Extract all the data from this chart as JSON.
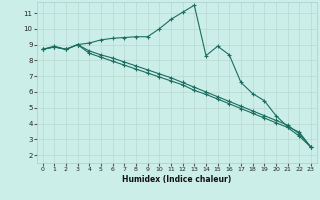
{
  "xlabel": "Humidex (Indice chaleur)",
  "background_color": "#cceee8",
  "grid_color": "#b8d8d0",
  "line_color": "#1a6e60",
  "xlim": [
    -0.5,
    23.5
  ],
  "ylim": [
    1.5,
    11.7
  ],
  "xticks": [
    0,
    1,
    2,
    3,
    4,
    5,
    6,
    7,
    8,
    9,
    10,
    11,
    12,
    13,
    14,
    15,
    16,
    17,
    18,
    19,
    20,
    21,
    22,
    23
  ],
  "yticks": [
    2,
    3,
    4,
    5,
    6,
    7,
    8,
    9,
    10,
    11
  ],
  "series1_x": [
    0,
    1,
    2,
    3,
    4,
    5,
    6,
    7,
    8,
    9,
    10,
    11,
    12,
    13,
    14,
    15,
    16,
    17,
    18,
    19,
    20,
    21,
    22,
    23
  ],
  "series1_y": [
    8.7,
    8.9,
    8.7,
    9.0,
    9.1,
    9.3,
    9.4,
    9.45,
    9.5,
    9.5,
    10.0,
    10.6,
    11.05,
    11.5,
    8.3,
    8.9,
    8.35,
    6.6,
    5.9,
    5.45,
    4.5,
    3.8,
    3.45,
    2.5
  ],
  "series2_x": [
    0,
    1,
    2,
    3,
    4,
    5,
    6,
    7,
    8,
    9,
    10,
    11,
    12,
    13,
    14,
    15,
    16,
    17,
    18,
    19,
    20,
    21,
    22,
    23
  ],
  "series2_y": [
    8.7,
    8.85,
    8.7,
    9.0,
    8.45,
    8.2,
    7.95,
    7.7,
    7.45,
    7.2,
    6.95,
    6.7,
    6.45,
    6.1,
    5.85,
    5.55,
    5.25,
    4.95,
    4.65,
    4.35,
    4.05,
    3.75,
    3.2,
    2.5
  ],
  "series3_x": [
    0,
    1,
    2,
    3,
    4,
    5,
    6,
    7,
    8,
    9,
    10,
    11,
    12,
    13,
    14,
    15,
    16,
    17,
    18,
    19,
    20,
    21,
    22,
    23
  ],
  "series3_y": [
    8.7,
    8.85,
    8.7,
    9.0,
    8.6,
    8.35,
    8.15,
    7.9,
    7.65,
    7.4,
    7.15,
    6.9,
    6.6,
    6.3,
    6.0,
    5.7,
    5.4,
    5.1,
    4.8,
    4.5,
    4.2,
    3.9,
    3.35,
    2.5
  ]
}
